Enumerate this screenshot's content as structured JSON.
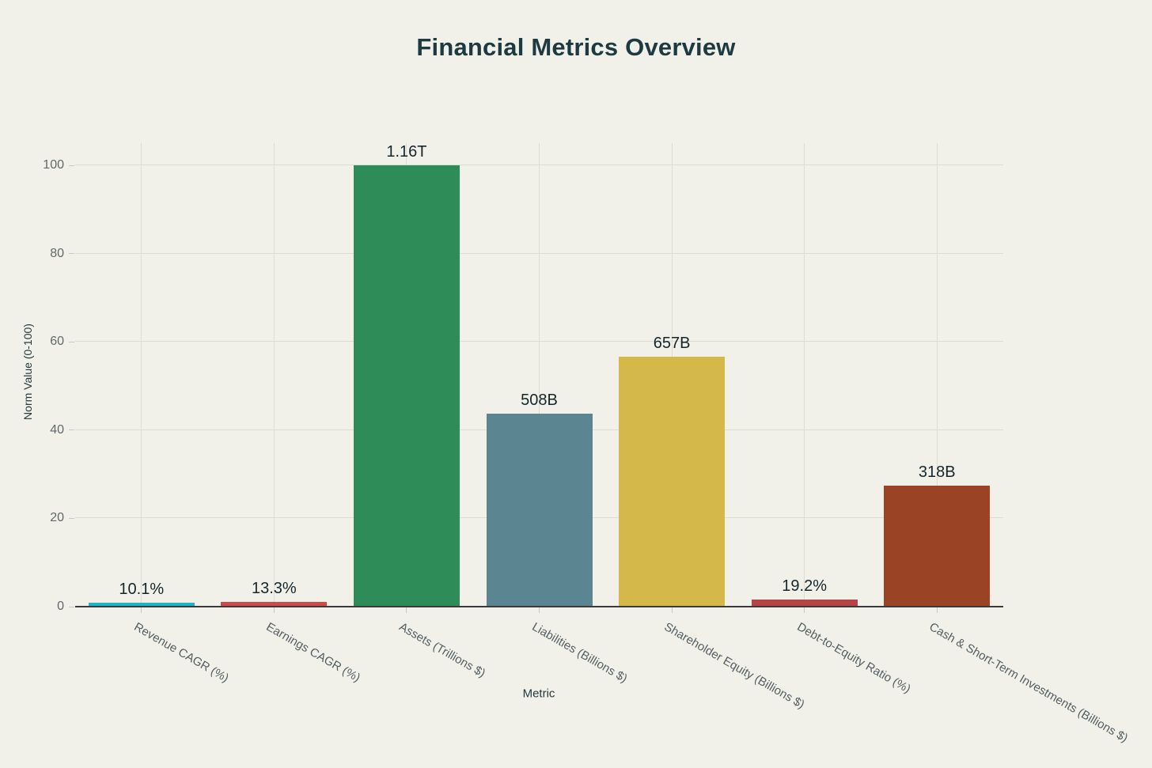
{
  "chart_data": {
    "type": "bar",
    "title": "Financial Metrics Overview",
    "xlabel": "Metric",
    "ylabel": "Norm Value (0-100)",
    "ylim": [
      0,
      100
    ],
    "yticks": [
      0,
      20,
      40,
      60,
      80,
      100
    ],
    "grid": true,
    "legend": false,
    "categories": [
      "Revenue CAGR (%)",
      "Earnings CAGR (%)",
      "Assets (Trillions $)",
      "Liabilities (Billions $)",
      "Shareholder Equity (Billions $)",
      "Debt-to-Equity Ratio (%)",
      "Cash & Short-Term Investments (Billions $)"
    ],
    "values": [
      0.9,
      1.1,
      100,
      43.8,
      56.6,
      1.7,
      27.4
    ],
    "bar_labels": [
      "10.1%",
      "13.3%",
      "1.16T",
      "508B",
      "657B",
      "19.2%",
      "318B"
    ],
    "bar_colors": [
      "#21b4c6",
      "#d04a4a",
      "#2e8c58",
      "#5b8591",
      "#d4b84a",
      "#b74444",
      "#9a4425"
    ],
    "colors": {
      "background": "#f1f1ea",
      "grid": "#dcdcd2",
      "axis_line": "#3b3b3b",
      "tick_label": "#63676a",
      "x_tick_label": "#545e62",
      "title": "#1d3a40",
      "value_label": "#16262b",
      "axis_title": "#24383d"
    }
  }
}
